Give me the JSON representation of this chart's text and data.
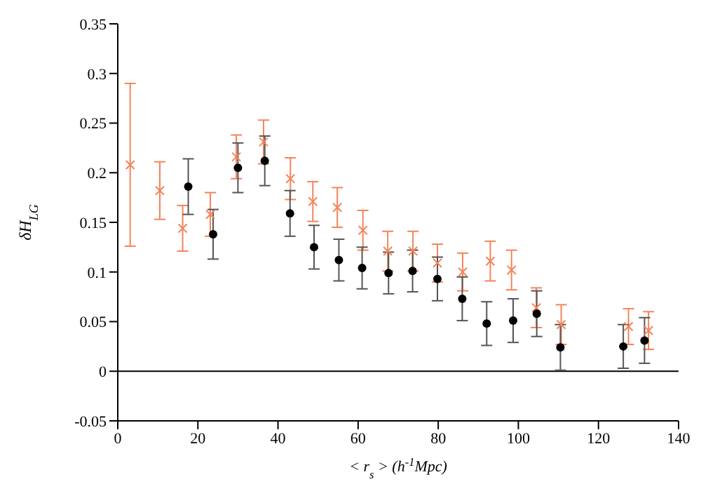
{
  "chart_data": {
    "type": "scatter",
    "xlabel": "< r$_{s}$ > (h$^{-1}$Mpc)",
    "ylabel": "δH$_{LG}$",
    "xlim": [
      0,
      140
    ],
    "xticks": [
      0,
      20,
      40,
      60,
      80,
      100,
      120,
      140
    ],
    "ylim": [
      -0.05,
      0.35
    ],
    "yticks": [
      -0.05,
      0,
      0.05,
      0.1,
      0.15,
      0.2,
      0.25,
      0.3,
      0.35
    ],
    "grid": false,
    "legend": false,
    "ref_lines": [
      {
        "axis": "y",
        "value": 0,
        "color": "#000000"
      }
    ],
    "series": [
      {
        "color": "#f4845a",
        "marker": "cross",
        "x": [
          3.1,
          10.5,
          16.2,
          23.1,
          29.6,
          36.4,
          43.1,
          48.7,
          54.8,
          61.2,
          67.4,
          73.7,
          79.8,
          86.1,
          93,
          98.3,
          104.5,
          110.7,
          127.5,
          132.5
        ],
        "values": [
          0.208,
          0.182,
          0.144,
          0.158,
          0.216,
          0.231,
          0.194,
          0.171,
          0.165,
          0.142,
          0.121,
          0.121,
          0.109,
          0.1,
          0.111,
          0.102,
          0.064,
          0.047,
          0.045,
          0.041
        ],
        "errors": [
          0.082,
          0.029,
          0.023,
          0.022,
          0.022,
          0.022,
          0.021,
          0.02,
          0.02,
          0.02,
          0.02,
          0.02,
          0.019,
          0.019,
          0.02,
          0.02,
          0.02,
          0.02,
          0.018,
          0.019
        ]
      },
      {
        "color": "#000000",
        "marker": "circle",
        "x": [
          17.6,
          23.8,
          30,
          36.7,
          43,
          49,
          55.2,
          61,
          67.6,
          73.6,
          79.8,
          86,
          92.1,
          98.7,
          104.6,
          110.5,
          126.2,
          131.5
        ],
        "values": [
          0.186,
          0.138,
          0.205,
          0.212,
          0.159,
          0.125,
          0.112,
          0.104,
          0.099,
          0.101,
          0.093,
          0.073,
          0.048,
          0.051,
          0.058,
          0.024,
          0.025,
          0.031
        ],
        "errors": [
          0.028,
          0.025,
          0.025,
          0.025,
          0.023,
          0.022,
          0.021,
          0.021,
          0.021,
          0.021,
          0.022,
          0.022,
          0.022,
          0.022,
          0.023,
          0.023,
          0.022,
          0.023
        ]
      }
    ]
  }
}
